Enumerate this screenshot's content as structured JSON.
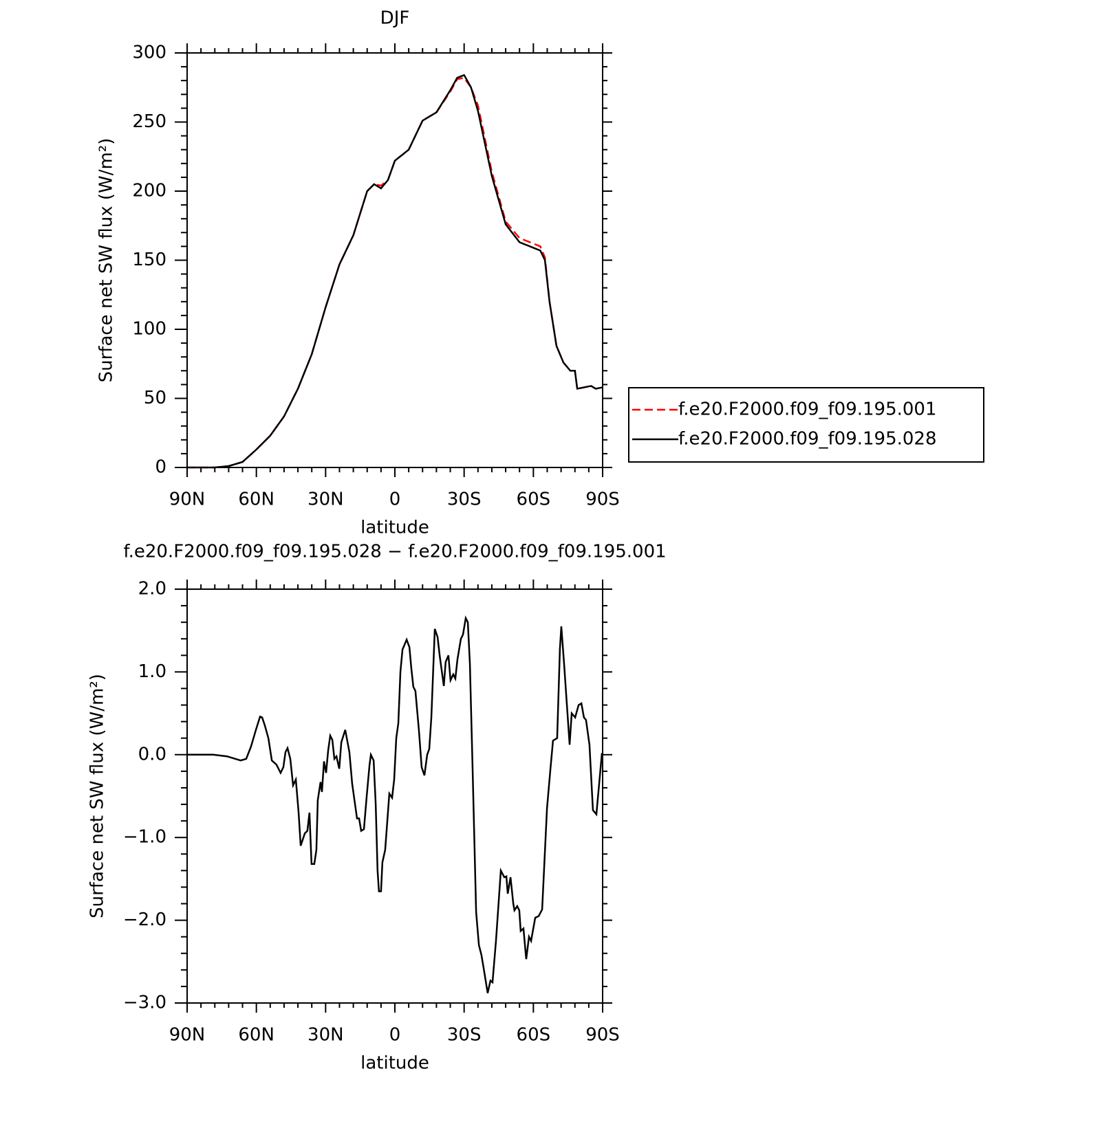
{
  "chart_data": [
    {
      "type": "line",
      "title": "DJF",
      "xlabel": "latitude",
      "ylabel": "Surface net SW flux (W/m²)",
      "x": [
        90,
        78,
        72,
        66,
        60,
        54,
        48,
        42,
        36,
        30,
        24,
        18,
        12,
        9,
        6,
        3,
        0,
        -6,
        -12,
        -18,
        -24,
        -27,
        -30,
        -33,
        -36,
        -42,
        -48,
        -54,
        -60,
        -63,
        -65,
        -67,
        -70,
        -73,
        -76,
        -78,
        -79,
        -82,
        -85,
        -87,
        -90
      ],
      "series": [
        {
          "name": "f.e20.F2000.f09_f09.195.001",
          "color": "#ff0000",
          "linestyle": "dashed",
          "values": [
            0,
            0,
            1,
            4,
            13,
            23,
            37,
            57,
            82,
            116,
            147,
            168,
            200,
            205,
            204,
            208,
            222,
            230,
            251,
            257,
            272,
            281,
            282,
            275,
            262,
            214,
            178,
            166,
            162,
            160,
            152,
            120,
            88,
            76,
            70,
            70,
            57,
            58,
            59,
            57,
            58
          ]
        },
        {
          "name": "f.e20.F2000.f09_f09.195.028",
          "color": "#000000",
          "linestyle": "solid",
          "values": [
            0,
            0,
            1,
            4,
            13,
            23,
            37,
            57,
            82,
            116,
            147,
            168,
            200,
            205,
            202,
            208,
            222,
            230,
            251,
            257,
            273,
            282,
            284,
            275,
            258,
            211,
            176,
            163,
            159,
            157,
            150,
            120,
            88,
            76,
            70,
            70,
            57,
            58,
            59,
            57,
            58
          ]
        }
      ],
      "xlim": [
        90,
        -90
      ],
      "xticks": [
        {
          "value": 90,
          "label": "90N"
        },
        {
          "value": 60,
          "label": "60N"
        },
        {
          "value": 30,
          "label": "30N"
        },
        0,
        {
          "value": -30,
          "label": "30S"
        },
        {
          "value": -60,
          "label": "60S"
        },
        {
          "value": -90,
          "label": "90S"
        }
      ],
      "ylim": [
        0,
        300
      ],
      "yticks": [
        0,
        50,
        100,
        150,
        200,
        250,
        300
      ],
      "legend": "right"
    },
    {
      "type": "line",
      "title": "f.e20.F2000.f09_f09.195.028 − f.e20.F2000.f09_f09.195.001",
      "xlabel": "latitude",
      "ylabel": "Surface net SW flux (W/m²)",
      "x": [
        90,
        78.7,
        72.7,
        66.8,
        64.4,
        62.3,
        60.2,
        58.4,
        57.5,
        56.3,
        54.8,
        53.3,
        51.3,
        49.5,
        48.3,
        47.4,
        46.5,
        45.3,
        44.1,
        42.9,
        41.7,
        40.8,
        39.0,
        37.9,
        37.0,
        36.1,
        34.9,
        34.0,
        33.4,
        32.2,
        31.6,
        30.7,
        29.8,
        28.9,
        28.0,
        27.1,
        26.2,
        25.3,
        24.1,
        23.2,
        21.5,
        19.7,
        18.5,
        16.4,
        15.5,
        14.6,
        13.4,
        12.2,
        11.0,
        10.4,
        9.2,
        8.3,
        7.5,
        6.9,
        6.0,
        5.4,
        4.2,
        2.4,
        1.2,
        0.3,
        -0.6,
        -1.5,
        -2.4,
        -3.3,
        -5.1,
        -6.3,
        -7.1,
        -8.0,
        -8.9,
        -10.4,
        -11.6,
        -12.8,
        -14.0,
        -14.9,
        -15.8,
        -17.3,
        -18.5,
        -19.4,
        -21.2,
        -22.0,
        -23.2,
        -24.1,
        -25.3,
        -26.2,
        -27.1,
        -28.6,
        -29.5,
        -30.7,
        -31.6,
        -32.5,
        -33.7,
        -35.2,
        -36.4,
        -37.5,
        -38.7,
        -40.2,
        -41.4,
        -42.3,
        -43.8,
        -45.9,
        -47.4,
        -48.3,
        -48.9,
        -50.1,
        -51.3,
        -51.8,
        -53.0,
        -53.9,
        -54.5,
        -55.7,
        -56.9,
        -58.1,
        -59.0,
        -60.8,
        -62.3,
        -63.8,
        -65.9,
        -67.3,
        -68.5,
        -69.7,
        -70.3,
        -71.5,
        -72.1,
        -73.3,
        -75.7,
        -76.6,
        -78.1,
        -79.6,
        -80.8,
        -81.9,
        -82.8,
        -84.3,
        -85.8,
        -87.3,
        -88.5,
        -89.7
      ],
      "series": [
        {
          "color": "#000000",
          "linestyle": "solid",
          "values": [
            0,
            0,
            -0.02,
            -0.07,
            -0.05,
            0.1,
            0.3,
            0.46,
            0.45,
            0.35,
            0.2,
            -0.07,
            -0.12,
            -0.22,
            -0.15,
            0.03,
            0.08,
            -0.05,
            -0.37,
            -0.3,
            -0.7,
            -1.1,
            -0.95,
            -0.92,
            -0.7,
            -1.32,
            -1.32,
            -1.15,
            -0.55,
            -0.33,
            -0.45,
            -0.08,
            -0.22,
            0.05,
            0.23,
            0.18,
            -0.05,
            -0.02,
            -0.17,
            0.15,
            0.3,
            0.03,
            -0.35,
            -0.77,
            -0.77,
            -0.92,
            -0.9,
            -0.5,
            -0.13,
            0,
            -0.07,
            -0.6,
            -1.4,
            -1.65,
            -1.65,
            -1.3,
            -1.15,
            -0.47,
            -0.52,
            -0.3,
            0.2,
            0.38,
            1.0,
            1.27,
            1.39,
            1.3,
            1.05,
            0.82,
            0.77,
            0.3,
            -0.15,
            -0.25,
            0,
            0.07,
            0.45,
            1.52,
            1.42,
            1.2,
            0.83,
            1.12,
            1.2,
            0.9,
            0.97,
            0.92,
            1.15,
            1.4,
            1.45,
            1.65,
            1.6,
            1.1,
            -0.2,
            -1.9,
            -2.3,
            -2.42,
            -2.62,
            -2.88,
            -2.73,
            -2.75,
            -2.25,
            -1.4,
            -1.48,
            -1.47,
            -1.68,
            -1.48,
            -1.8,
            -1.88,
            -1.83,
            -1.88,
            -2.13,
            -2.1,
            -2.47,
            -2.2,
            -2.25,
            -1.97,
            -1.95,
            -1.87,
            -0.65,
            -0.2,
            0.17,
            0.19,
            0.2,
            1.28,
            1.55,
            1.1,
            0.12,
            0.5,
            0.45,
            0.6,
            0.62,
            0.45,
            0.42,
            0.12,
            -0.67,
            -0.72,
            -0.35,
            0.02
          ]
        }
      ],
      "xlim": [
        90,
        -90
      ],
      "xticks": [
        {
          "value": 90,
          "label": "90N"
        },
        {
          "value": 60,
          "label": "60N"
        },
        {
          "value": 30,
          "label": "30N"
        },
        0,
        {
          "value": -30,
          "label": "30S"
        },
        {
          "value": -60,
          "label": "60S"
        },
        {
          "value": -90,
          "label": "90S"
        }
      ],
      "ylim": [
        -3,
        2
      ],
      "yticks": [
        {
          "value": -3,
          "label": "−3.0"
        },
        {
          "value": -2,
          "label": "−2.0"
        },
        {
          "value": -1,
          "label": "−1.0"
        },
        {
          "value": 0,
          "label": "0.0"
        },
        {
          "value": 1,
          "label": "1.0"
        },
        {
          "value": 2,
          "label": "2.0"
        }
      ]
    }
  ]
}
